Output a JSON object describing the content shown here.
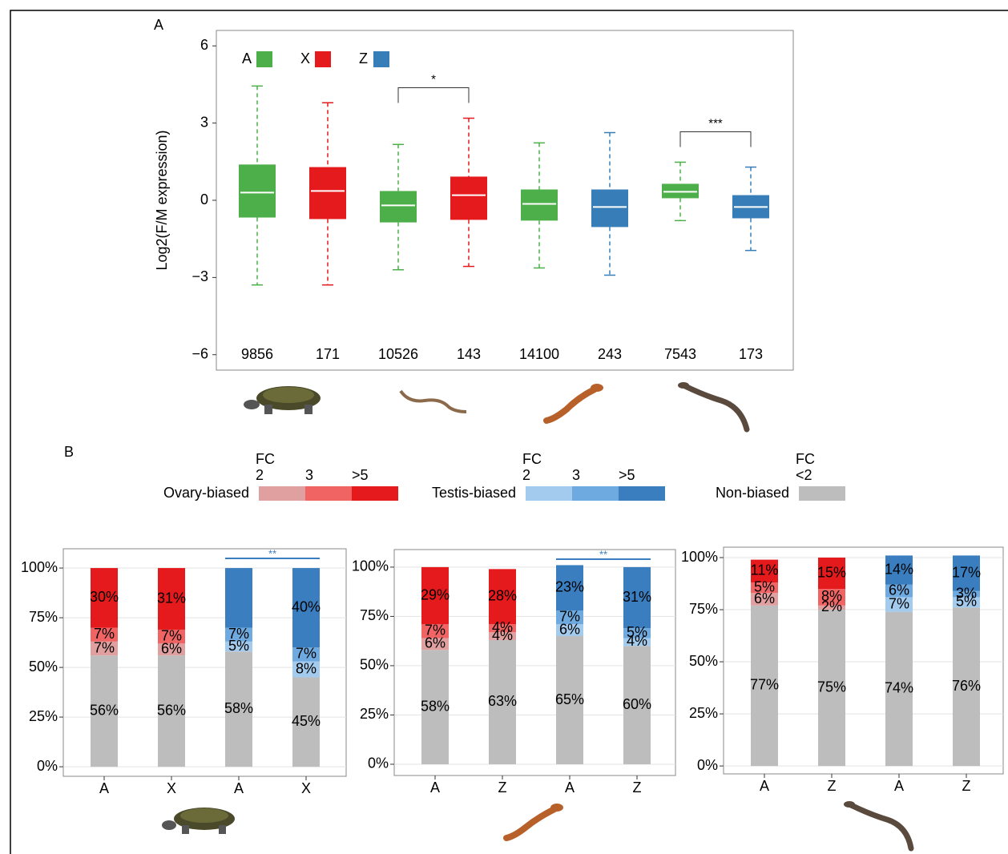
{
  "panel_labels": {
    "a": "A",
    "b": "B"
  },
  "chart_data": [
    {
      "type": "box",
      "y_label": "Log2(F/M expression)",
      "ylim": [
        -6.6,
        6.6
      ],
      "yticks": [
        {
          "value": -6,
          "label": "−6"
        },
        {
          "value": -3,
          "label": "−3"
        },
        0,
        3,
        6
      ],
      "legend": [
        {
          "name": "A",
          "color": "#4daf4a"
        },
        {
          "name": "X",
          "color": "#e41a1c"
        },
        {
          "name": "Z",
          "color": "#377eb8"
        }
      ],
      "legend_position": "top-left",
      "counts": [
        9856,
        171,
        10526,
        143,
        14100,
        243,
        7543,
        173
      ],
      "boxes": [
        {
          "color": "#4daf4a",
          "low": -3.29,
          "q1": -0.67,
          "median": 0.3,
          "q3": 1.39,
          "high": 4.44
        },
        {
          "color": "#e41a1c",
          "low": -3.29,
          "q1": -0.73,
          "median": 0.36,
          "q3": 1.29,
          "high": 3.79
        },
        {
          "color": "#4daf4a",
          "low": -2.7,
          "q1": -0.86,
          "median": -0.2,
          "q3": 0.36,
          "high": 2.17
        },
        {
          "color": "#e41a1c",
          "low": -2.57,
          "q1": -0.76,
          "median": 0.2,
          "q3": 0.92,
          "high": 3.19
        },
        {
          "color": "#4daf4a",
          "low": -2.63,
          "q1": -0.79,
          "median": -0.14,
          "q3": 0.42,
          "high": 2.23
        },
        {
          "color": "#377eb8",
          "low": -2.91,
          "q1": -1.04,
          "median": -0.26,
          "q3": 0.42,
          "high": 2.63
        },
        {
          "color": "#4daf4a",
          "low": -0.79,
          "q1": 0.08,
          "median": 0.33,
          "q3": 0.64,
          "high": 1.48
        },
        {
          "color": "#377eb8",
          "low": -1.95,
          "q1": -0.7,
          "median": -0.26,
          "q3": 0.2,
          "high": 1.29
        }
      ],
      "significance": [
        {
          "text": "*",
          "from": 2,
          "to": 3
        },
        {
          "text": "***",
          "from": 6,
          "to": 7
        }
      ]
    },
    {
      "type": "stacked_bar",
      "categories": [
        "A",
        "X",
        "A",
        "X"
      ],
      "ylim": [
        -4.8,
        109.7
      ],
      "yticks": [
        {
          "value": 0,
          "label": "0%"
        },
        {
          "value": 25,
          "label": "25%"
        },
        {
          "value": 50,
          "label": "50%"
        },
        {
          "value": 75,
          "label": "75%"
        },
        {
          "value": 100,
          "label": "100%"
        }
      ],
      "grid": true,
      "series": [
        {
          "values": [
            56,
            56,
            58,
            45
          ],
          "value_labels": [
            "56%",
            "56%",
            "58%",
            "45%"
          ],
          "colors": [
            "#bdbdbd",
            "#bdbdbd",
            "#bdbdbd",
            "#bdbdbd"
          ]
        },
        {
          "values": [
            7,
            6,
            5,
            8
          ],
          "value_labels": [
            "7%",
            "6%",
            "5%",
            "8%"
          ],
          "colors": [
            "#e0a0a0",
            "#e0a0a0",
            "#a3cbee",
            "#a3cbee"
          ]
        },
        {
          "values": [
            7,
            7,
            7,
            7
          ],
          "value_labels": [
            "7%",
            "7%",
            "7%",
            "7%"
          ],
          "colors": [
            "#f06464",
            "#f06464",
            "#6ea9df",
            "#6ea9df"
          ]
        },
        {
          "values": [
            30,
            31,
            30,
            40
          ],
          "value_labels": [
            "30%",
            "31%",
            null,
            "40%"
          ],
          "colors": [
            "#e41a1c",
            "#e41a1c",
            "#3a7ebf",
            "#3a7ebf"
          ]
        }
      ],
      "significance": [
        {
          "text": "**",
          "from": 2,
          "to": 3,
          "color": "#3a7ebf"
        }
      ]
    },
    {
      "type": "stacked_bar",
      "categories": [
        "A",
        "Z",
        "A",
        "Z"
      ],
      "ylim": [
        -5.7,
        108.9
      ],
      "yticks": [
        {
          "value": 0,
          "label": "0%"
        },
        {
          "value": 25,
          "label": "25%"
        },
        {
          "value": 50,
          "label": "50%"
        },
        {
          "value": 75,
          "label": "75%"
        },
        {
          "value": 100,
          "label": "100%"
        }
      ],
      "grid": true,
      "series": [
        {
          "values": [
            58,
            63,
            65,
            60
          ],
          "value_labels": [
            "58%",
            "63%",
            "65%",
            "60%"
          ],
          "colors": [
            "#bdbdbd",
            "#bdbdbd",
            "#bdbdbd",
            "#bdbdbd"
          ]
        },
        {
          "values": [
            6,
            4,
            6,
            4
          ],
          "value_labels": [
            "6%",
            "4%",
            "6%",
            "4%"
          ],
          "colors": [
            "#e0a0a0",
            "#e0a0a0",
            "#a3cbee",
            "#a3cbee"
          ]
        },
        {
          "values": [
            7,
            4,
            7,
            5
          ],
          "value_labels": [
            "7%",
            "4%",
            "7%",
            "5%"
          ],
          "colors": [
            "#f06464",
            "#f06464",
            "#6ea9df",
            "#6ea9df"
          ]
        },
        {
          "values": [
            29,
            28,
            23,
            31
          ],
          "value_labels": [
            "29%",
            "28%",
            "23%",
            "31%"
          ],
          "colors": [
            "#e41a1c",
            "#e41a1c",
            "#3a7ebf",
            "#3a7ebf"
          ]
        }
      ],
      "significance": [
        {
          "text": "**",
          "from": 2,
          "to": 3,
          "color": "#3a7ebf"
        }
      ]
    },
    {
      "type": "stacked_bar",
      "categories": [
        "A",
        "Z",
        "A",
        "Z"
      ],
      "ylim": [
        -3.8,
        105
      ],
      "yticks": [
        {
          "value": 0,
          "label": "0%"
        },
        {
          "value": 25,
          "label": "25%"
        },
        {
          "value": 50,
          "label": "50%"
        },
        {
          "value": 75,
          "label": "75%"
        },
        {
          "value": 100,
          "label": "100%"
        }
      ],
      "grid": true,
      "series": [
        {
          "values": [
            77,
            75,
            74,
            76
          ],
          "value_labels": [
            "77%",
            "75%",
            "74%",
            "76%"
          ],
          "colors": [
            "#bdbdbd",
            "#bdbdbd",
            "#bdbdbd",
            "#bdbdbd"
          ]
        },
        {
          "values": [
            6,
            2,
            7,
            5
          ],
          "value_labels": [
            "6%",
            "2%",
            "7%",
            "5%"
          ],
          "colors": [
            "#e0a0a0",
            "#e0a0a0",
            "#a3cbee",
            "#a3cbee"
          ]
        },
        {
          "values": [
            5,
            8,
            6,
            3
          ],
          "value_labels": [
            "5%",
            "8%",
            "6%",
            "3%"
          ],
          "colors": [
            "#f06464",
            "#f06464",
            "#6ea9df",
            "#6ea9df"
          ]
        },
        {
          "values": [
            11,
            15,
            14,
            17
          ],
          "value_labels": [
            "11%",
            "15%",
            "14%",
            "17%"
          ],
          "colors": [
            "#e41a1c",
            "#e41a1c",
            "#3a7ebf",
            "#3a7ebf"
          ]
        }
      ],
      "significance": []
    }
  ],
  "bias_legend": [
    {
      "name": "Ovary-biased",
      "header": "FC",
      "levels": [
        "2",
        "3",
        ">5"
      ],
      "colors": [
        "#e0a0a0",
        "#f06464",
        "#e41a1c"
      ]
    },
    {
      "name": "Testis-biased",
      "header": "FC",
      "levels": [
        "2",
        "3",
        ">5"
      ],
      "colors": [
        "#a3cbee",
        "#6ea9df",
        "#3a7ebf"
      ]
    },
    {
      "name": "Non-biased",
      "header": "FC",
      "levels": [
        "<2"
      ],
      "colors": [
        "#bdbdbd"
      ]
    }
  ]
}
